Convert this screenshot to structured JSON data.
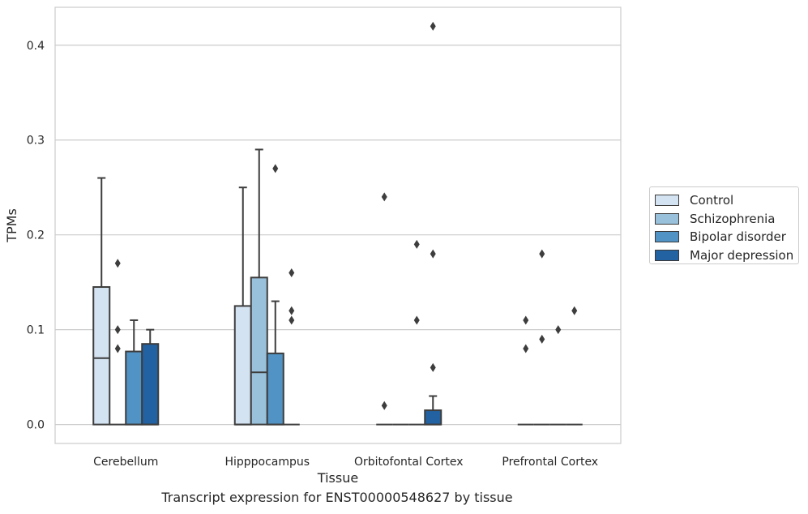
{
  "caption": "Transcript expression for ENST00000548627 by tissue",
  "colors": {
    "control": "#d4e3f2",
    "schizophrenia": "#9ac1db",
    "bipolar": "#5193c4",
    "depression": "#2262a3",
    "box_edge": "#3d3d3d",
    "grid": "#cccccc"
  },
  "chart_data": {
    "type": "box",
    "xlabel": "Tissue",
    "ylabel": "TPMs",
    "ylim": [
      -0.02,
      0.44
    ],
    "yticks": [
      0.0,
      0.1,
      0.2,
      0.3,
      0.4
    ],
    "ytick_labels": [
      "0.0",
      "0.1",
      "0.2",
      "0.3",
      "0.4"
    ],
    "grid": true,
    "legend_position": "outside-right",
    "categories": [
      "Cerebellum",
      "Hipppocampus",
      "Orbitofontal Cortex",
      "Prefrontal Cortex"
    ],
    "series": [
      {
        "name": "Control",
        "color": "#d4e3f2",
        "boxes": [
          {
            "q1": 0.0,
            "median": 0.07,
            "q3": 0.145,
            "whislo": 0.0,
            "whishi": 0.26,
            "fliers": []
          },
          {
            "q1": 0.0,
            "median": 0.0,
            "q3": 0.125,
            "whislo": 0.0,
            "whishi": 0.25,
            "fliers": []
          },
          {
            "q1": 0.0,
            "median": 0.0,
            "q3": 0.0,
            "whislo": 0.0,
            "whishi": 0.0,
            "fliers": [
              0.24,
              0.02
            ]
          },
          {
            "q1": 0.0,
            "median": 0.0,
            "q3": 0.0,
            "whislo": 0.0,
            "whishi": 0.0,
            "fliers": [
              0.11,
              0.08
            ]
          }
        ]
      },
      {
        "name": "Schizophrenia",
        "color": "#9ac1db",
        "boxes": [
          {
            "q1": 0.0,
            "median": 0.0,
            "q3": 0.0,
            "whislo": 0.0,
            "whishi": 0.0,
            "fliers": [
              0.17,
              0.1,
              0.08
            ]
          },
          {
            "q1": 0.0,
            "median": 0.055,
            "q3": 0.155,
            "whislo": 0.0,
            "whishi": 0.29,
            "fliers": []
          },
          {
            "q1": 0.0,
            "median": 0.0,
            "q3": 0.0,
            "whislo": 0.0,
            "whishi": 0.0,
            "fliers": []
          },
          {
            "q1": 0.0,
            "median": 0.0,
            "q3": 0.0,
            "whislo": 0.0,
            "whishi": 0.0,
            "fliers": [
              0.18,
              0.09
            ]
          }
        ]
      },
      {
        "name": "Bipolar disorder",
        "color": "#5193c4",
        "boxes": [
          {
            "q1": 0.0,
            "median": 0.0,
            "q3": 0.077,
            "whislo": 0.0,
            "whishi": 0.11,
            "fliers": []
          },
          {
            "q1": 0.0,
            "median": 0.0,
            "q3": 0.075,
            "whislo": 0.0,
            "whishi": 0.13,
            "fliers": [
              0.27
            ]
          },
          {
            "q1": 0.0,
            "median": 0.0,
            "q3": 0.0,
            "whislo": 0.0,
            "whishi": 0.0,
            "fliers": [
              0.19,
              0.11
            ]
          },
          {
            "q1": 0.0,
            "median": 0.0,
            "q3": 0.0,
            "whislo": 0.0,
            "whishi": 0.0,
            "fliers": [
              0.1
            ]
          }
        ]
      },
      {
        "name": "Major depression",
        "color": "#2262a3",
        "boxes": [
          {
            "q1": 0.0,
            "median": 0.0,
            "q3": 0.085,
            "whislo": 0.0,
            "whishi": 0.1,
            "fliers": []
          },
          {
            "q1": 0.0,
            "median": 0.0,
            "q3": 0.0,
            "whislo": 0.0,
            "whishi": 0.0,
            "fliers": [
              0.16,
              0.12,
              0.11
            ]
          },
          {
            "q1": 0.0,
            "median": 0.0,
            "q3": 0.015,
            "whislo": 0.0,
            "whishi": 0.03,
            "fliers": [
              0.42,
              0.18,
              0.06
            ]
          },
          {
            "q1": 0.0,
            "median": 0.0,
            "q3": 0.0,
            "whislo": 0.0,
            "whishi": 0.0,
            "fliers": [
              0.12
            ]
          }
        ]
      }
    ]
  }
}
